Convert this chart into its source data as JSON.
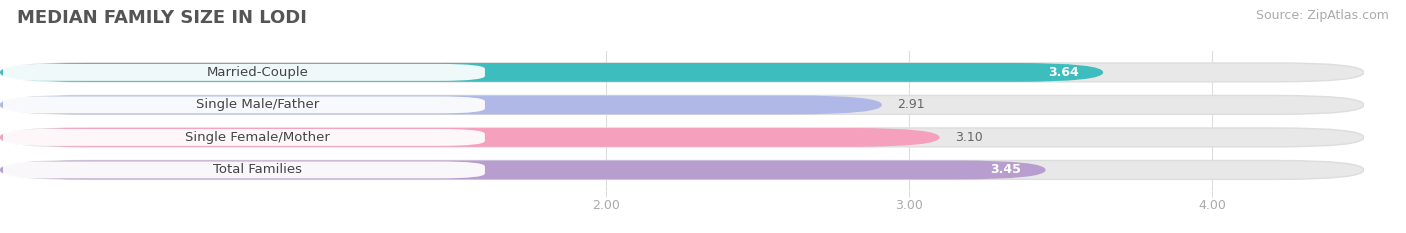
{
  "title": "MEDIAN FAMILY SIZE IN LODI",
  "source": "Source: ZipAtlas.com",
  "categories": [
    "Married-Couple",
    "Single Male/Father",
    "Single Female/Mother",
    "Total Families"
  ],
  "values": [
    3.64,
    2.91,
    3.1,
    3.45
  ],
  "bar_colors": [
    "#3dbdbd",
    "#b0b8e8",
    "#f5a0bc",
    "#b89ece"
  ],
  "bar_bg_color": "#e8e8e8",
  "value_colors": [
    "#ffffff",
    "#888888",
    "#888888",
    "#ffffff"
  ],
  "xlim_data": [
    0.0,
    4.5
  ],
  "x_axis_start": 0.0,
  "xticks": [
    2.0,
    3.0,
    4.0
  ],
  "xtick_labels": [
    "2.00",
    "3.00",
    "4.00"
  ],
  "bar_height": 0.58,
  "bar_gap": 0.42,
  "figsize": [
    14.06,
    2.33
  ],
  "dpi": 100,
  "title_fontsize": 13,
  "source_fontsize": 9,
  "label_fontsize": 9.5,
  "value_fontsize": 9,
  "tick_fontsize": 9,
  "background_color": "#ffffff",
  "plot_bg_color": "#f9f9f9"
}
